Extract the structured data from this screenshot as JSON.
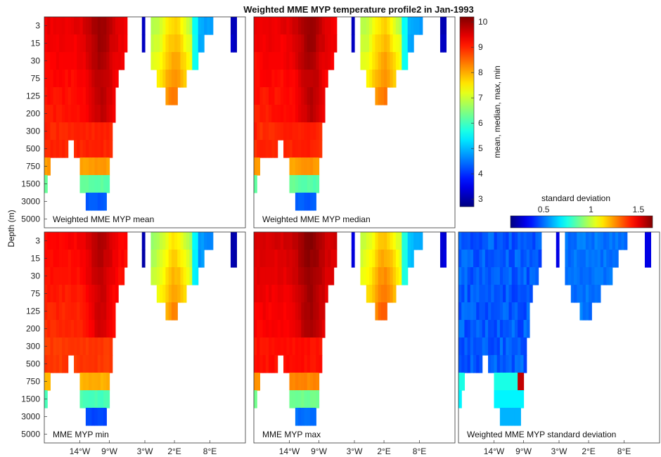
{
  "chart_data": {
    "type": "heatmap",
    "title": "Weighted MME MYP temperature profile2 in Jan-1993",
    "ylabel": "Depth (m)",
    "y_ticks": [
      "3",
      "15",
      "30",
      "75",
      "125",
      "200",
      "300",
      "500",
      "750",
      "1500",
      "3000",
      "5000"
    ],
    "x_ticks": [
      "14°W",
      "9°W",
      "3°W",
      "2°E",
      "8°E"
    ],
    "x_tick_lons": [
      -14,
      -9,
      -3,
      2,
      8
    ],
    "x_range": [
      -20,
      14
    ],
    "panels": [
      {
        "label": "Weighted MME MYP mean",
        "variant": "mean"
      },
      {
        "label": "Weighted MME MYP median",
        "variant": "median"
      },
      {
        "label": "MME MYP min",
        "variant": "min"
      },
      {
        "label": "MME MYP max",
        "variant": "max"
      },
      {
        "label": "Weighted MME MYP standard deviation",
        "variant": "std"
      }
    ],
    "colorbar_temp": {
      "label": "mean, median, max, min",
      "range": [
        2.7,
        10.2
      ],
      "ticks": [
        "3",
        "4",
        "5",
        "6",
        "7",
        "8",
        "9",
        "10"
      ]
    },
    "colorbar_std": {
      "label": "standard deviation",
      "range": [
        0.15,
        1.65
      ],
      "ticks": [
        "0.5",
        "1",
        "1.5"
      ]
    }
  }
}
